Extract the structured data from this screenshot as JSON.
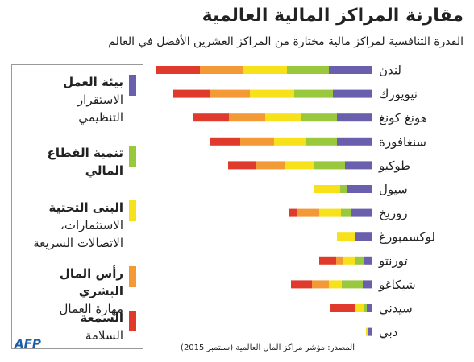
{
  "chart_data": {
    "type": "stacked-bar-horizontal",
    "title": "مقارنة المراكز المالية العالمية",
    "subtitle": "القدرة التنافسية لمراكز مالية مختارة من المراكز العشرين الأفضل في العالم",
    "source": "المصدر: مؤشر مراكز المال العالمية (سبتمبر 2015)",
    "logo": "AFP",
    "categories": [
      "لندن",
      "نيويورك",
      "هونغ كونغ",
      "سنغافورة",
      "طوكيو",
      "سيول",
      "زوريخ",
      "لوكسمبورغ",
      "تورنتو",
      "شيكاغو",
      "سيدني",
      "دبي"
    ],
    "series": [
      {
        "name": "بيئة العمل",
        "description_lines": [
          "الاستقرار",
          "التنظيمي"
        ],
        "color": "#6a5fad",
        "values": [
          54,
          49,
          44,
          44,
          34,
          31,
          26,
          21,
          11,
          12,
          7,
          5
        ]
      },
      {
        "name": "تنمية القطاع المالي",
        "description_lines": [],
        "color": "#9ac83c",
        "values": [
          52,
          48,
          45,
          39,
          39,
          9,
          13,
          0,
          11,
          26,
          3,
          0
        ]
      },
      {
        "name": "البنى التحتية",
        "description_lines": [
          "الاستثمارات،",
          "الاتصالات السريعة"
        ],
        "color": "#f6e11a",
        "values": [
          55,
          55,
          44,
          39,
          35,
          32,
          27,
          23,
          14,
          16,
          12,
          3
        ]
      },
      {
        "name": "رأس المال البشري",
        "description_lines": [
          "مهارة العمال"
        ],
        "color": "#f39a36",
        "values": [
          53,
          50,
          45,
          42,
          36,
          0,
          28,
          0,
          9,
          21,
          0,
          0
        ]
      },
      {
        "name": "السمعة",
        "description_lines": [
          "السلامة"
        ],
        "color": "#e03a2c",
        "values": [
          55,
          45,
          45,
          37,
          35,
          0,
          9,
          0,
          21,
          26,
          31,
          0
        ]
      }
    ]
  }
}
